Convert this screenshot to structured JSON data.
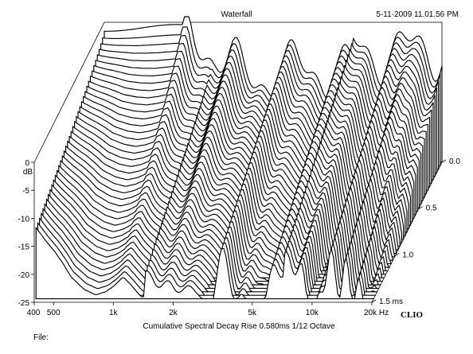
{
  "header": {
    "title": "Waterfall",
    "timestamp": "5-11-2009 11.01.56 PM"
  },
  "footer": {
    "caption": "Cumulative Spectral Decay   Rise 0.580ms   1/12 Octave",
    "file_label": "File:",
    "brand": "CLIO"
  },
  "chart_data": {
    "type": "waterfall",
    "title": "Waterfall",
    "ylabel": "dB",
    "x_scale": "log",
    "x_range_hz": [
      400,
      20000
    ],
    "x_ticks": [
      {
        "value": 400,
        "label": "400"
      },
      {
        "value": 500,
        "label": "500"
      },
      {
        "value": 1000,
        "label": "1k"
      },
      {
        "value": 2000,
        "label": "2k"
      },
      {
        "value": 5000,
        "label": "5k"
      },
      {
        "value": 10000,
        "label": "10k"
      },
      {
        "value": 20000,
        "label": "20k Hz"
      }
    ],
    "y_range_db": [
      -25,
      0
    ],
    "y_ticks": [
      {
        "value": 0,
        "label": "0"
      },
      {
        "value": -5,
        "label": "-5"
      },
      {
        "value": -10,
        "label": "-10"
      },
      {
        "value": -15,
        "label": "-15"
      },
      {
        "value": -20,
        "label": "-20"
      },
      {
        "value": -25,
        "label": "-25"
      }
    ],
    "z_range_ms": [
      0,
      1.5
    ],
    "z_ticks": [
      {
        "value": 0.0,
        "label": "0.0"
      },
      {
        "value": 0.5,
        "label": "0.5"
      },
      {
        "value": 1.0,
        "label": "1.0"
      },
      {
        "value": 1.5,
        "label": "1.5 ms"
      }
    ],
    "slice_count": 40,
    "slice_step_ms": 0.0375,
    "front_slice_db": [
      {
        "hz": 400,
        "db": -12.5
      },
      {
        "hz": 450,
        "db": -15
      },
      {
        "hz": 500,
        "db": -17
      },
      {
        "hz": 550,
        "db": -19.2
      },
      {
        "hz": 600,
        "db": -21.5
      },
      {
        "hz": 700,
        "db": -23.8
      },
      {
        "hz": 800,
        "db": -24.8
      },
      {
        "hz": 900,
        "db": -24.2
      },
      {
        "hz": 1000,
        "db": -23
      },
      {
        "hz": 1100,
        "db": -21.5
      },
      {
        "hz": 1200,
        "db": -22.8
      },
      {
        "hz": 1350,
        "db": -25
      }
    ]
  }
}
